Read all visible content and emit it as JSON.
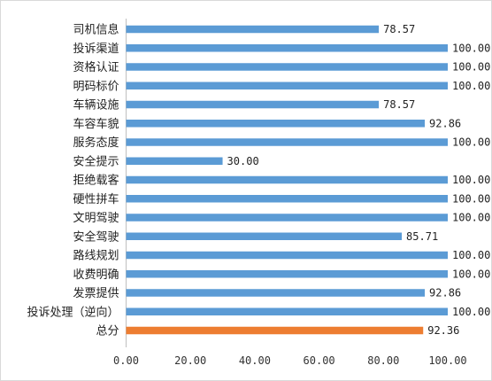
{
  "chart_data": {
    "type": "bar",
    "orientation": "horizontal",
    "categories": [
      "司机信息",
      "投诉渠道",
      "资格认证",
      "明码标价",
      "车辆设施",
      "车容车貌",
      "服务态度",
      "安全提示",
      "拒绝载客",
      "硬性拼车",
      "文明驾驶",
      "安全驾驶",
      "路线规划",
      "收费明确",
      "发票提供",
      "投诉处理（逆向）",
      "总分"
    ],
    "values": [
      78.57,
      100.0,
      100.0,
      100.0,
      78.57,
      92.86,
      100.0,
      30.0,
      100.0,
      100.0,
      100.0,
      85.71,
      100.0,
      100.0,
      92.86,
      100.0,
      92.36
    ],
    "value_labels": [
      "78.57",
      "100.00",
      "100.00",
      "100.00",
      "78.57",
      "92.86",
      "100.00",
      "30.00",
      "100.00",
      "100.00",
      "100.00",
      "85.71",
      "100.00",
      "100.00",
      "92.86",
      "100.00",
      "92.36"
    ],
    "bar_colors": [
      "#5b9bd5",
      "#5b9bd5",
      "#5b9bd5",
      "#5b9bd5",
      "#5b9bd5",
      "#5b9bd5",
      "#5b9bd5",
      "#5b9bd5",
      "#5b9bd5",
      "#5b9bd5",
      "#5b9bd5",
      "#5b9bd5",
      "#5b9bd5",
      "#5b9bd5",
      "#5b9bd5",
      "#5b9bd5",
      "#ed7d31"
    ],
    "x_ticks": [
      "0.00",
      "20.00",
      "40.00",
      "60.00",
      "80.00",
      "100.00"
    ],
    "xlim": [
      0,
      100
    ],
    "grid": false,
    "title": "",
    "xlabel": "",
    "ylabel": ""
  }
}
